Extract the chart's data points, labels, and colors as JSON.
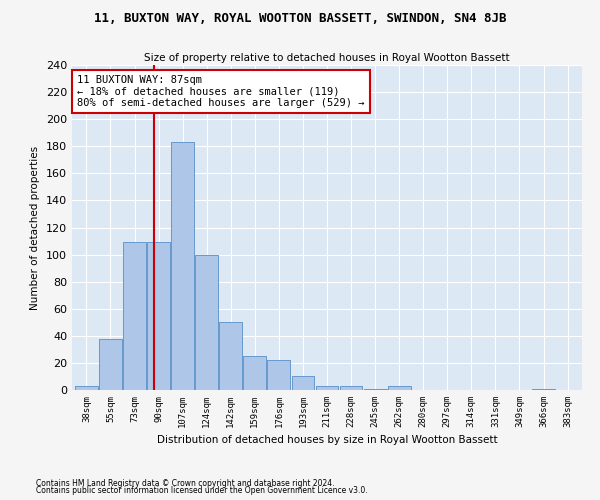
{
  "title": "11, BUXTON WAY, ROYAL WOOTTON BASSETT, SWINDON, SN4 8JB",
  "subtitle": "Size of property relative to detached houses in Royal Wootton Bassett",
  "xlabel": "Distribution of detached houses by size in Royal Wootton Bassett",
  "ylabel": "Number of detached properties",
  "footnote1": "Contains HM Land Registry data © Crown copyright and database right 2024.",
  "footnote2": "Contains public sector information licensed under the Open Government Licence v3.0.",
  "categories": [
    "38sqm",
    "55sqm",
    "73sqm",
    "90sqm",
    "107sqm",
    "124sqm",
    "142sqm",
    "159sqm",
    "176sqm",
    "193sqm",
    "211sqm",
    "228sqm",
    "245sqm",
    "262sqm",
    "280sqm",
    "297sqm",
    "314sqm",
    "331sqm",
    "349sqm",
    "366sqm",
    "383sqm"
  ],
  "values": [
    3,
    38,
    109,
    109,
    183,
    100,
    50,
    25,
    22,
    10,
    3,
    3,
    1,
    3,
    0,
    0,
    0,
    0,
    0,
    1,
    0
  ],
  "bar_color": "#aec6e8",
  "bar_edge_color": "#6699cc",
  "bg_color": "#dde8f5",
  "grid_color": "#ffffff",
  "vline_color": "#cc0000",
  "annotation_text": "11 BUXTON WAY: 87sqm\n← 18% of detached houses are smaller (119)\n80% of semi-detached houses are larger (529) →",
  "annotation_box_color": "#cc0000",
  "ylim": [
    0,
    240
  ],
  "yticks": [
    0,
    20,
    40,
    60,
    80,
    100,
    120,
    140,
    160,
    180,
    200,
    220,
    240
  ],
  "fig_bg_color": "#f5f5f5"
}
